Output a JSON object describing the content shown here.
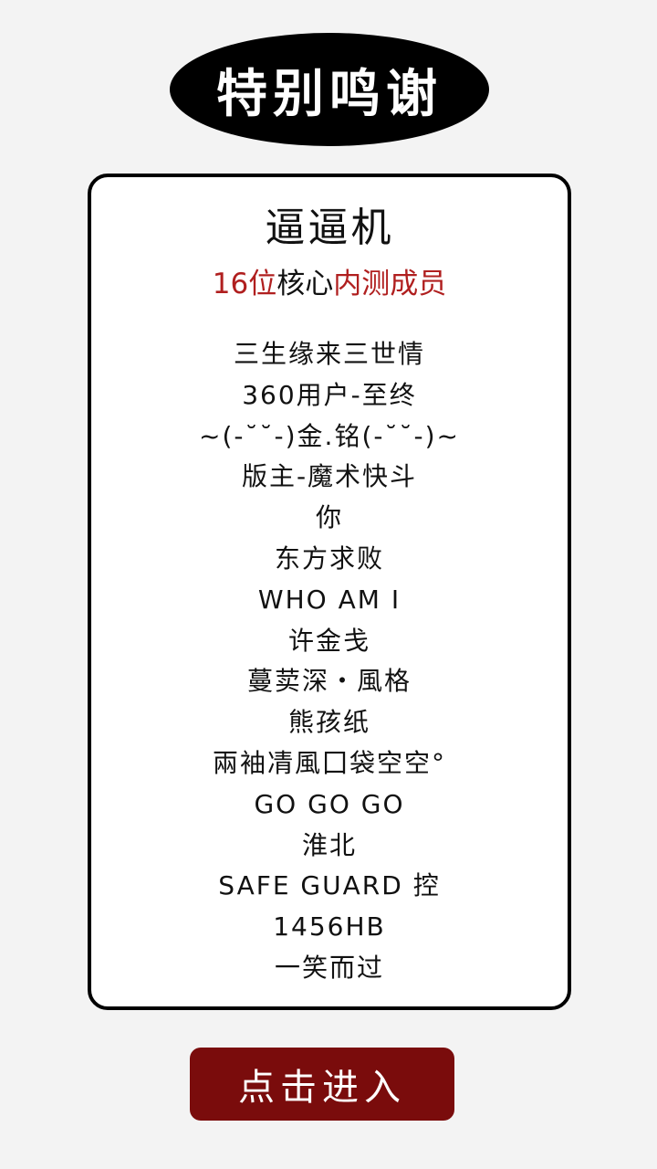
{
  "header": {
    "title": "特别鸣谢"
  },
  "card": {
    "title": "逼逼机",
    "subtitle": {
      "count": "16位",
      "core": "核心",
      "rest": "内测成员"
    },
    "members": [
      "三生缘来三世情",
      "360用户-至终",
      "~(-˘˘-)金.铭(-˘˘-)~",
      "版主-魔术快斗",
      "你",
      "东方求败",
      "WHO AM I",
      "许金戋",
      "蔓荬深・風格",
      "熊孩纸",
      "兩袖凊風囗袋空空°",
      "GO GO GO",
      "淮北",
      "SAFE GUARD 控",
      "1456HB",
      "一笑而过"
    ]
  },
  "footer": {
    "enter_label": "点击进入"
  },
  "colors": {
    "accent_red": "#b01f1f",
    "button_bg": "#7a0c0c",
    "pill_bg": "#000000",
    "page_bg": "#f3f3f3"
  }
}
